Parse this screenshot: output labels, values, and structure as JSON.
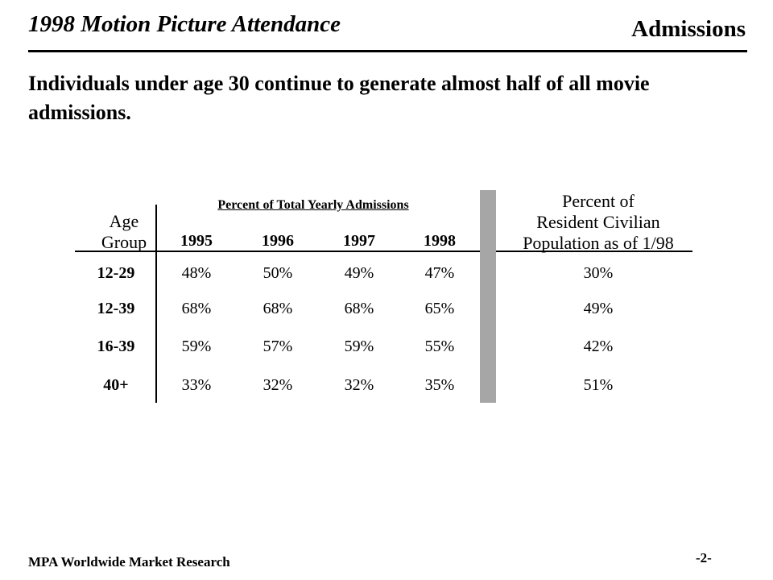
{
  "header": {
    "title": "1998 Motion Picture Attendance",
    "section": "Admissions"
  },
  "headline": "Individuals under age 30 continue to generate almost half of all movie admissions.",
  "table": {
    "caption": "Percent of Total Yearly Admissions",
    "age_header_line1": "Age",
    "age_header_line2": "Group",
    "years": [
      "1995",
      "1996",
      "1997",
      "1998"
    ],
    "population_header_line1": "Percent of",
    "population_header_line2": "Resident Civilian",
    "population_header_line3": "Population as of 1/98",
    "rows": [
      {
        "group": "12-29",
        "values": [
          "48%",
          "50%",
          "49%",
          "47%"
        ],
        "population": "30%"
      },
      {
        "group": "12-39",
        "values": [
          "68%",
          "68%",
          "68%",
          "65%"
        ],
        "population": "49%"
      },
      {
        "group": "16-39",
        "values": [
          "59%",
          "57%",
          "59%",
          "55%"
        ],
        "population": "42%"
      },
      {
        "group": "40+",
        "values": [
          "33%",
          "32%",
          "32%",
          "35%"
        ],
        "population": "51%"
      }
    ]
  },
  "footer": {
    "source": "MPA Worldwide Market Research",
    "page": "-2-"
  }
}
